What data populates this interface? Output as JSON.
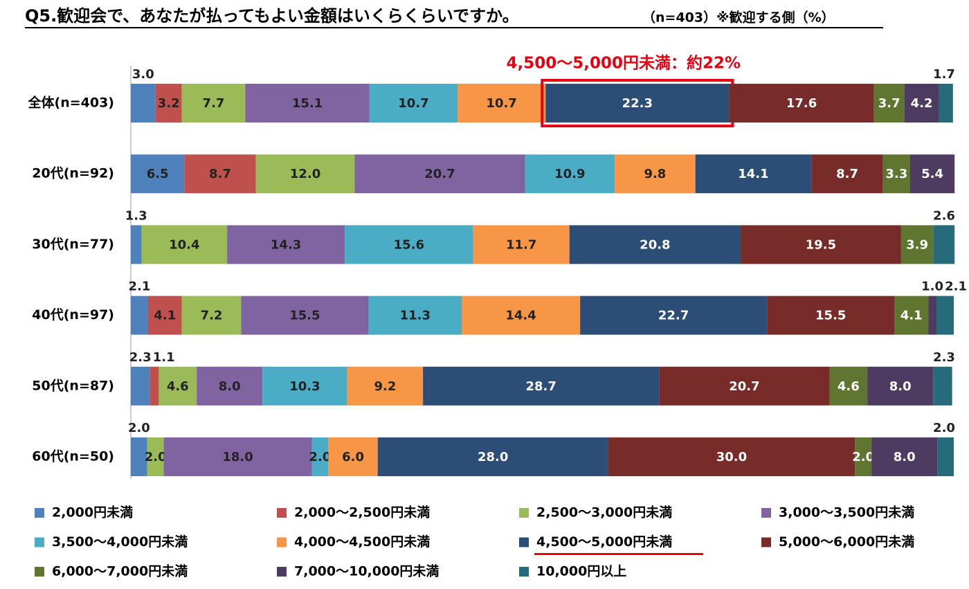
{
  "chart_data": {
    "type": "stacked_bar_horizontal",
    "title": "Q5.歓迎会で、あなたが払ってもよい金額はいくらくらいですか。",
    "subtitle": "（n=403）※歓迎する側（%）",
    "annotation": "4,500～5,000円未満：約22%",
    "categories": [
      "全体(n=403)",
      "20代(n=92)",
      "30代(n=77)",
      "40代(n=97)",
      "50代(n=87)",
      "60代(n=50)"
    ],
    "xlim": [
      0,
      100
    ],
    "series": [
      {
        "name": "2,000円未満",
        "color": "#4f81bd",
        "values": [
          3.0,
          6.5,
          1.3,
          2.1,
          2.3,
          2.0
        ],
        "value_labels": [
          "3.0",
          "6.5",
          "1.3",
          "2.1",
          "2.3",
          "2.0"
        ]
      },
      {
        "name": "2,000～2,500円未満",
        "color": "#c0504d",
        "values": [
          3.2,
          8.7,
          null,
          4.1,
          1.1,
          null
        ],
        "value_labels": [
          "3.2",
          "8.7",
          null,
          "4.1",
          "1.1",
          null
        ]
      },
      {
        "name": "2,500～3,000円未満",
        "color": "#9bbb59",
        "values": [
          7.7,
          12.0,
          10.4,
          7.2,
          4.6,
          2.0
        ],
        "value_labels": [
          "7.7",
          "12.0",
          "10.4",
          "7.2",
          "4.6",
          "2.0"
        ]
      },
      {
        "name": "3,000～3,500円未満",
        "color": "#8064a2",
        "values": [
          15.1,
          20.7,
          14.3,
          15.5,
          8.0,
          18.0
        ],
        "value_labels": [
          "15.1",
          "20.7",
          "14.3",
          "15.5",
          "8.0",
          "18.0"
        ]
      },
      {
        "name": "3,500～4,000円未満",
        "color": "#4bacc6",
        "values": [
          10.7,
          10.9,
          15.6,
          11.3,
          10.3,
          2.0
        ],
        "value_labels": [
          "10.7",
          "10.9",
          "15.6",
          "11.3",
          "10.3",
          "2.0"
        ]
      },
      {
        "name": "4,000～4,500円未満",
        "color": "#f79646",
        "values": [
          10.7,
          9.8,
          11.7,
          14.4,
          9.2,
          6.0
        ],
        "value_labels": [
          "10.7",
          "9.8",
          "11.7",
          "14.4",
          "9.2",
          "6.0"
        ]
      },
      {
        "name": "4,500～5,000円未満",
        "color": "#2c4d75",
        "values": [
          22.3,
          14.1,
          20.8,
          22.7,
          28.7,
          28.0
        ],
        "value_labels": [
          "22.3",
          "14.1",
          "20.8",
          "22.7",
          "28.7",
          "28.0"
        ]
      },
      {
        "name": "5,000～6,000円未満",
        "color": "#772c2a",
        "values": [
          17.6,
          8.7,
          19.5,
          15.5,
          20.7,
          30.0
        ],
        "value_labels": [
          "17.6",
          "8.7",
          "19.5",
          "15.5",
          "20.7",
          "30.0"
        ]
      },
      {
        "name": "6,000～7,000円未満",
        "color": "#5f7530",
        "values": [
          3.7,
          3.3,
          3.9,
          4.1,
          4.6,
          2.0
        ],
        "value_labels": [
          "3.7",
          "3.3",
          "3.9",
          "4.1",
          "4.6",
          "2.0"
        ]
      },
      {
        "name": "7,000～10,000円未満",
        "color": "#4d3b62",
        "values": [
          4.2,
          5.4,
          null,
          1.0,
          8.0,
          8.0
        ],
        "value_labels": [
          "4.2",
          "5.4",
          null,
          "1.0",
          "8.0",
          "8.0"
        ]
      },
      {
        "name": "10,000円以上",
        "color": "#276a7c",
        "values": [
          1.7,
          null,
          2.6,
          2.1,
          2.3,
          2.0
        ],
        "value_labels": [
          "1.7",
          null,
          "2.6",
          "2.1",
          "2.3",
          "2.0"
        ]
      }
    ]
  }
}
